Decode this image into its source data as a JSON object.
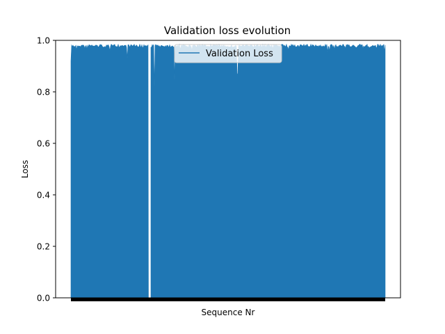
{
  "chart_data": {
    "type": "line",
    "title": "Validation loss evolution",
    "xlabel": "Sequence Nr",
    "ylabel": "Loss",
    "ylim": [
      0.0,
      1.0
    ],
    "y_ticks": [
      "0.0",
      "0.2",
      "0.4",
      "0.6",
      "0.8",
      "1.0"
    ],
    "x_tick_labels": "dense (illegible black band)",
    "grid": false,
    "legend_position": "top-center",
    "series": [
      {
        "name": "Validation Loss",
        "color": "#1f77b4",
        "oscillation_range": [
          0.0,
          0.99
        ],
        "typical_peak": 0.985,
        "notable_dips": [
          {
            "position_fraction": 0.18,
            "value": 0.93
          },
          {
            "position_fraction": 0.265,
            "value": 0.82
          },
          {
            "position_fraction": 0.33,
            "value": 0.845
          },
          {
            "position_fraction": 0.53,
            "value": 0.87
          }
        ],
        "gaps_fraction": [
          0.25
        ]
      }
    ]
  }
}
